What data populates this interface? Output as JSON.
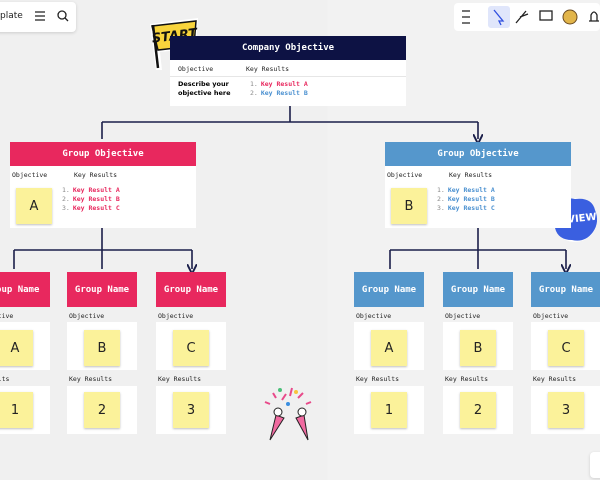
{
  "toolbar": {
    "board_name": "plate"
  },
  "stickers": {
    "start": "START",
    "review": "REVIEW"
  },
  "company_objective": {
    "title": "Company Objective",
    "objective_label": "Objective",
    "key_results_label": "Key Results",
    "objective_text": "Describe your objective here",
    "key_results": [
      {
        "number": "1.",
        "text": "Key Result A"
      },
      {
        "number": "2.",
        "text": "Key Result B"
      }
    ]
  },
  "groups": [
    {
      "title": "Group Objective",
      "objective_label": "Objective",
      "key_results_label": "Key Results",
      "sticky": "A",
      "key_results": [
        {
          "number": "1.",
          "text": "Key Result A"
        },
        {
          "number": "2.",
          "text": "Key Result B"
        },
        {
          "number": "3.",
          "text": "Key Result C"
        }
      ],
      "subgroups": [
        {
          "title": "roup Name",
          "objective_label": "bjective",
          "objective_sticky": "A",
          "key_results_label": "Results",
          "key_results_sticky": "1"
        },
        {
          "title": "Group Name",
          "objective_label": "Objective",
          "objective_sticky": "B",
          "key_results_label": "Key Results",
          "key_results_sticky": "2"
        },
        {
          "title": "Group Name",
          "objective_label": "Objective",
          "objective_sticky": "C",
          "key_results_label": "Key Results",
          "key_results_sticky": "3"
        }
      ]
    },
    {
      "title": "Group Objective",
      "objective_label": "Objective",
      "key_results_label": "Key Results",
      "sticky": "B",
      "key_results": [
        {
          "number": "1.",
          "text": "Key Result A"
        },
        {
          "number": "2.",
          "text": "Key Result B"
        },
        {
          "number": "3.",
          "text": "Key Result C"
        }
      ],
      "subgroups": [
        {
          "title": "Group Name",
          "objective_label": "Objective",
          "objective_sticky": "A",
          "key_results_label": "Key Results",
          "key_results_sticky": "1"
        },
        {
          "title": "Group Name",
          "objective_label": "Objective",
          "objective_sticky": "B",
          "key_results_label": "Key Results",
          "key_results_sticky": "2"
        },
        {
          "title": "Group Name",
          "objective_label": "Objective",
          "objective_sticky": "C",
          "key_results_label": "Key Results",
          "key_results_sticky": "3"
        }
      ]
    }
  ]
}
